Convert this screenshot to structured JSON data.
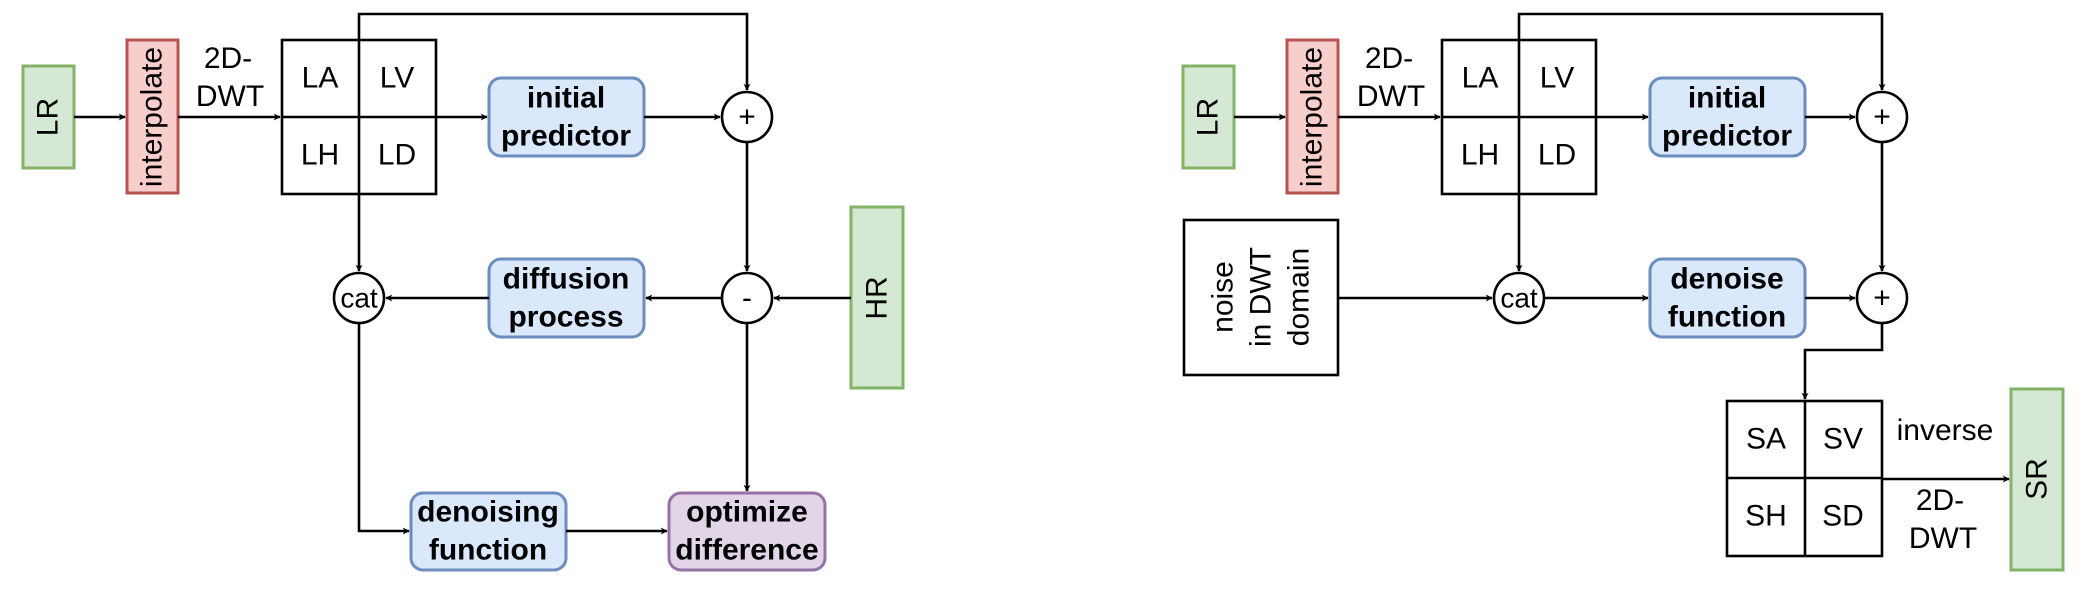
{
  "left": {
    "lr": "LR",
    "interpolate": "interpolate",
    "dwt_line1": "2D-",
    "dwt_line2": "DWT",
    "grid": [
      "LA",
      "LV",
      "LH",
      "LD"
    ],
    "initial_predictor": [
      "initial",
      "predictor"
    ],
    "plus": "+",
    "minus": "-",
    "hr": "HR",
    "diffusion_process": [
      "diffusion",
      "process"
    ],
    "cat": "cat",
    "denoising_function": [
      "denoising",
      "function"
    ],
    "optimize_difference": [
      "optimize",
      "difference"
    ]
  },
  "right": {
    "lr": "LR",
    "interpolate": "interpolate",
    "dwt_line1": "2D-",
    "dwt_line2": "DWT",
    "grid": [
      "LA",
      "LV",
      "LH",
      "LD"
    ],
    "initial_predictor": [
      "initial",
      "predictor"
    ],
    "plus_top": "+",
    "plus_mid": "+",
    "noise": [
      "noise",
      "in DWT",
      "domain"
    ],
    "cat": "cat",
    "denoise_function": [
      "denoise",
      "function"
    ],
    "out_grid": [
      "SA",
      "SV",
      "SH",
      "SD"
    ],
    "inverse": "inverse",
    "inv_dwt_line1": "2D-",
    "inv_dwt_line2": "DWT",
    "sr": "SR"
  },
  "colors": {
    "green_fill": "#d5e8d4",
    "green_stroke": "#82b366",
    "red_fill": "#f8cecc",
    "red_stroke": "#b85450",
    "blue_fill": "#dae8fc",
    "blue_stroke": "#6c8ebf",
    "purple_fill": "#e1d5e7",
    "purple_stroke": "#9673a6"
  }
}
